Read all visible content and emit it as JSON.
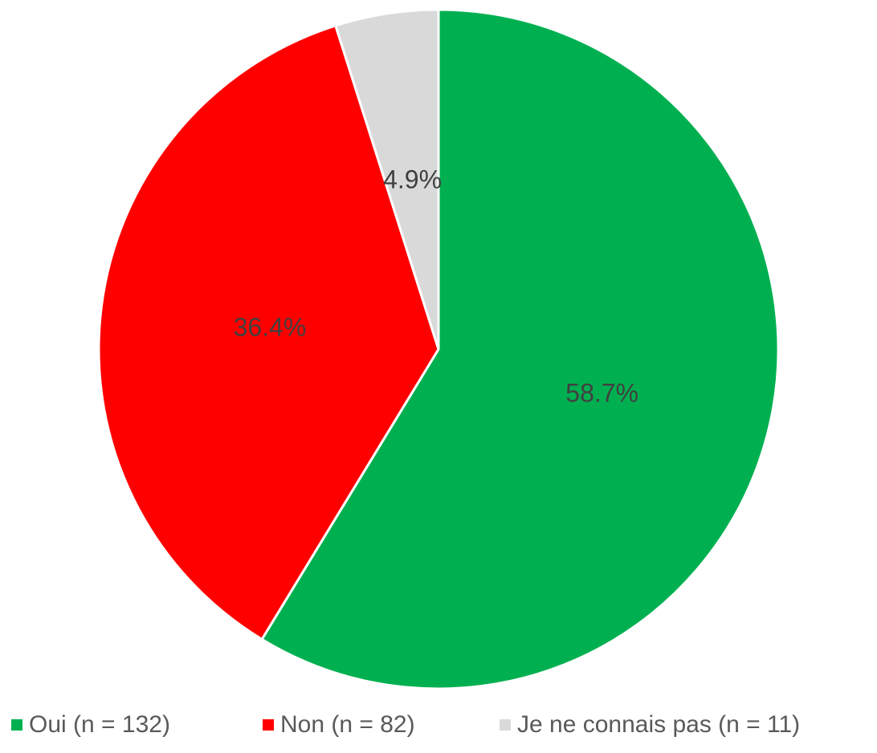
{
  "chart_data": {
    "type": "pie",
    "categories": [
      "Oui (n = 132)",
      "Non (n = 82)",
      "Je ne connais pas (n = 11)"
    ],
    "values": [
      58.7,
      36.4,
      4.9
    ],
    "value_labels": [
      "58.7%",
      "36.4%",
      "4.9%"
    ],
    "colors": [
      "#00b050",
      "#ff0000",
      "#d9d9d9"
    ],
    "legend": "bottom"
  }
}
